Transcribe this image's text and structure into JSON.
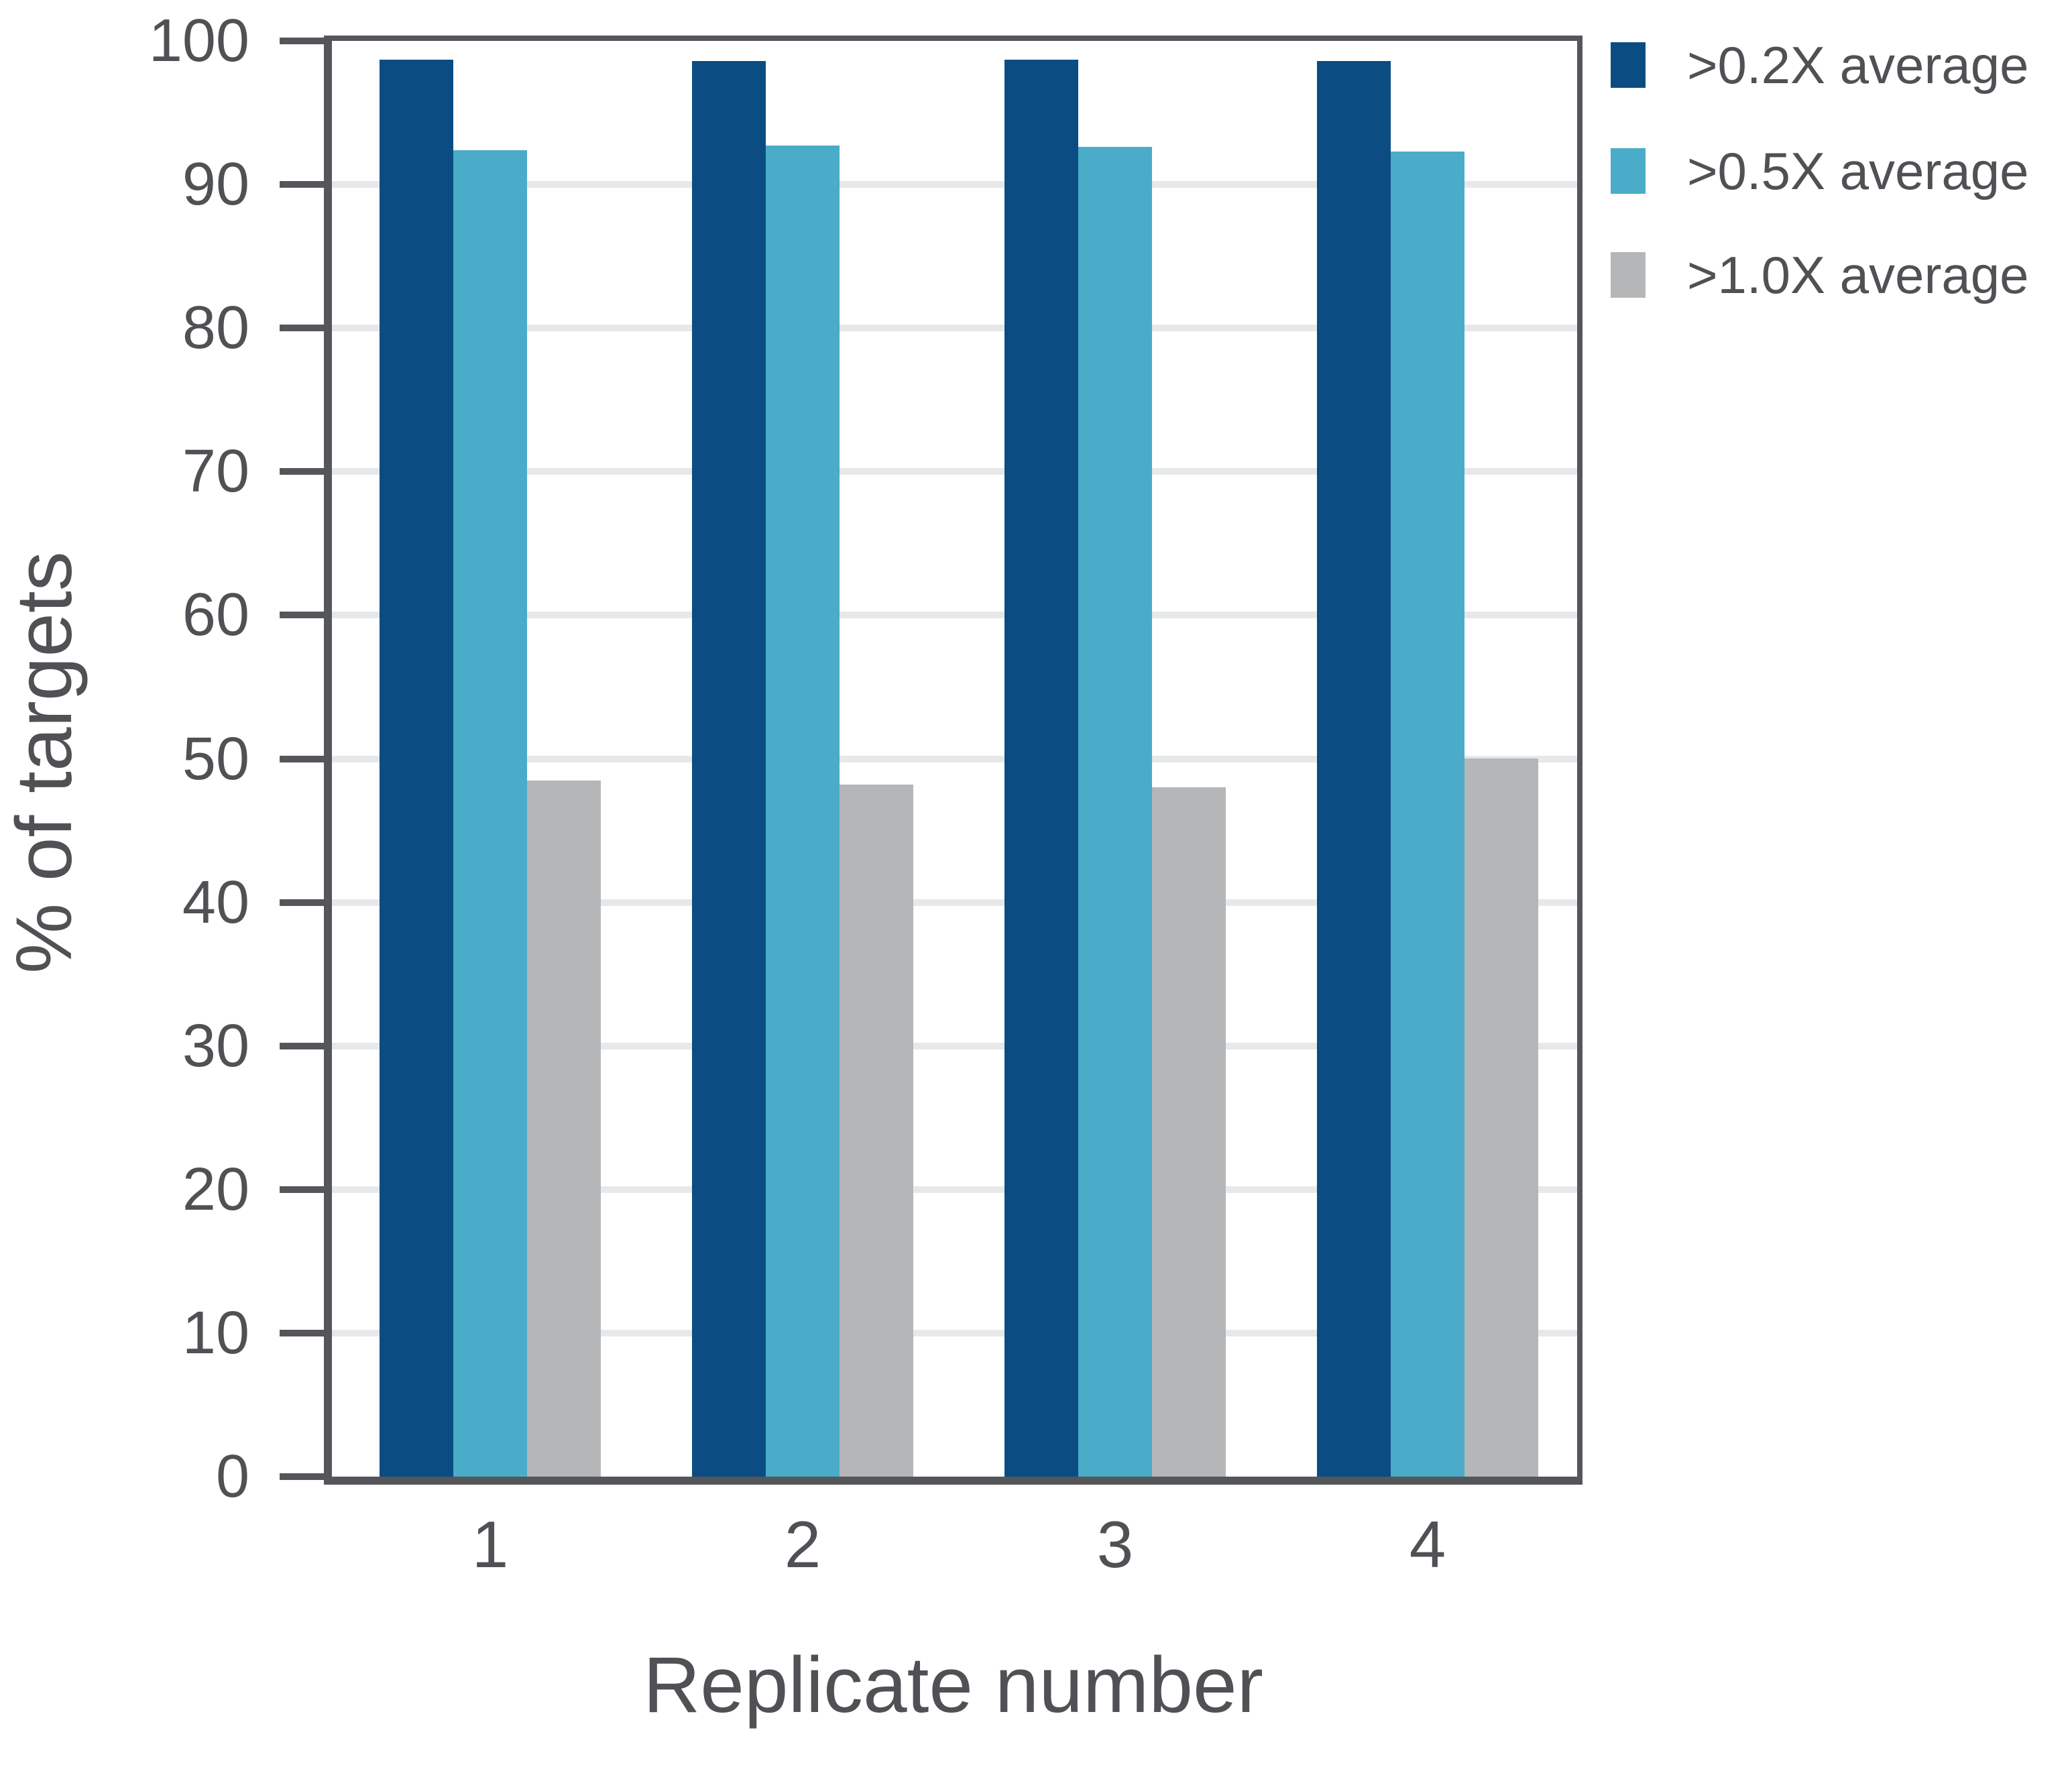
{
  "chart_data": {
    "type": "bar",
    "title": "",
    "xlabel": "Replicate number",
    "ylabel": "% of targets",
    "categories": [
      "1",
      "2",
      "3",
      "4"
    ],
    "series": [
      {
        "name": ">0.2X average",
        "color": "#0b4d82",
        "values": [
          98.7,
          98.6,
          98.7,
          98.6
        ]
      },
      {
        "name": ">0.5X average",
        "color": "#4aacc8",
        "values": [
          92.4,
          92.7,
          92.6,
          92.3
        ]
      },
      {
        "name": ">1.0X average",
        "color": "#b4b6b7",
        "values": [
          48.5,
          48.2,
          48.0,
          50.0
        ]
      }
    ],
    "ylim": [
      0,
      100
    ],
    "yticks": [
      0,
      10,
      20,
      30,
      40,
      50,
      60,
      70,
      80,
      90,
      100
    ],
    "grid": "horizontal-light",
    "legend_position": "top-right",
    "colors": {
      "axis": "#54565a",
      "grid": "#e7e8e9",
      "text": "#4f5154",
      "background": "#ffffff"
    }
  }
}
